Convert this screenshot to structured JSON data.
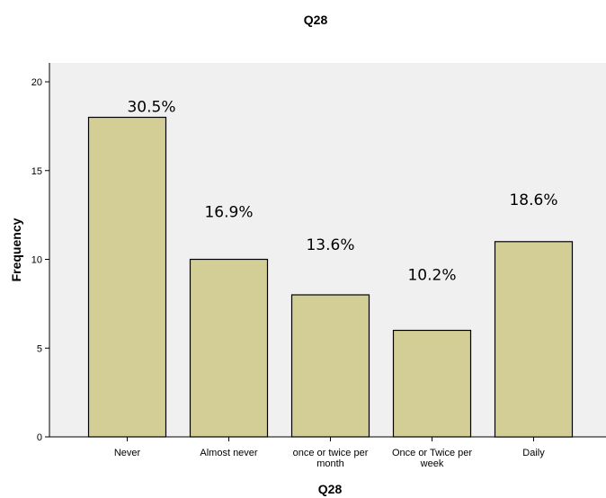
{
  "chart_data": {
    "type": "bar",
    "title": "Q28",
    "xlabel": "Q28",
    "ylabel": "Frequency",
    "categories": [
      [
        "Never"
      ],
      [
        "Almost never"
      ],
      [
        "once or twice per",
        "month"
      ],
      [
        "Once or Twice per",
        "week"
      ],
      [
        "Daily"
      ]
    ],
    "values": [
      18,
      10,
      8,
      6,
      11
    ],
    "data_labels": [
      "30.5%",
      "16.9%",
      "13.6%",
      "10.2%",
      "18.6%"
    ],
    "ylim": [
      0,
      20
    ],
    "yticks": [
      0,
      5,
      10,
      15,
      20
    ],
    "grid": false,
    "legend": "none",
    "colors": {
      "bar_fill": "#d3ce96",
      "bar_stroke": "#000000",
      "plot_background": "#f0f0f0",
      "axis": "#000000"
    }
  }
}
